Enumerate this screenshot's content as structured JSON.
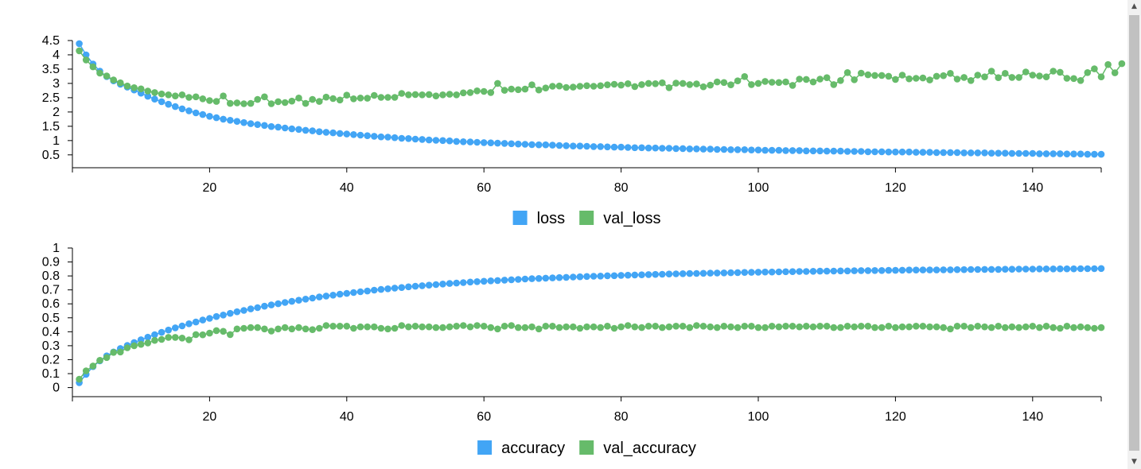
{
  "chart_data": [
    {
      "type": "line",
      "markers": true,
      "x": {
        "start": 1,
        "end": 150,
        "step": 1
      },
      "xlim": [
        0,
        150
      ],
      "ylim": [
        0.05,
        4.75
      ],
      "x_ticks": [
        20,
        40,
        60,
        80,
        100,
        120,
        140
      ],
      "x_tick_labels": [
        "20",
        "40",
        "60",
        "80",
        "100",
        "120",
        "140"
      ],
      "y_ticks": [
        0.5,
        1,
        1.5,
        2,
        2.5,
        3,
        3.5,
        4,
        4.5
      ],
      "y_tick_labels": [
        "0.5",
        "1",
        "1.5",
        "2",
        "2.5",
        "3",
        "3.5",
        "4",
        "4.5"
      ],
      "legend_position": "bottom-center",
      "series": [
        {
          "name": "loss",
          "color": "#42a5f5",
          "values": [
            4.39,
            4.0,
            3.68,
            3.43,
            3.24,
            3.09,
            2.97,
            2.87,
            2.77,
            2.66,
            2.55,
            2.45,
            2.36,
            2.27,
            2.19,
            2.11,
            2.04,
            1.97,
            1.91,
            1.85,
            1.8,
            1.75,
            1.71,
            1.67,
            1.63,
            1.59,
            1.56,
            1.53,
            1.49,
            1.47,
            1.44,
            1.41,
            1.39,
            1.36,
            1.34,
            1.31,
            1.29,
            1.27,
            1.25,
            1.23,
            1.21,
            1.19,
            1.17,
            1.15,
            1.13,
            1.12,
            1.1,
            1.08,
            1.07,
            1.05,
            1.04,
            1.02,
            1.01,
            1.0,
            0.99,
            0.97,
            0.96,
            0.95,
            0.94,
            0.93,
            0.92,
            0.91,
            0.9,
            0.89,
            0.88,
            0.87,
            0.86,
            0.85,
            0.85,
            0.84,
            0.83,
            0.82,
            0.81,
            0.81,
            0.8,
            0.79,
            0.79,
            0.78,
            0.77,
            0.77,
            0.76,
            0.75,
            0.75,
            0.74,
            0.74,
            0.73,
            0.73,
            0.72,
            0.72,
            0.71,
            0.71,
            0.7,
            0.7,
            0.69,
            0.69,
            0.68,
            0.68,
            0.68,
            0.67,
            0.67,
            0.66,
            0.66,
            0.66,
            0.65,
            0.65,
            0.65,
            0.64,
            0.64,
            0.64,
            0.63,
            0.63,
            0.63,
            0.62,
            0.62,
            0.62,
            0.61,
            0.61,
            0.61,
            0.6,
            0.6,
            0.6,
            0.6,
            0.59,
            0.59,
            0.59,
            0.58,
            0.58,
            0.58,
            0.58,
            0.57,
            0.57,
            0.57,
            0.57,
            0.56,
            0.56,
            0.56,
            0.55,
            0.55,
            0.55,
            0.55,
            0.54,
            0.54,
            0.54,
            0.54,
            0.53,
            0.53,
            0.53,
            0.52,
            0.52,
            0.52
          ]
        },
        {
          "name": "val_loss",
          "color": "#66bb6a",
          "values": [
            4.14,
            3.82,
            3.58,
            3.36,
            3.26,
            3.12,
            3.02,
            2.91,
            2.85,
            2.81,
            2.73,
            2.68,
            2.63,
            2.6,
            2.56,
            2.6,
            2.51,
            2.53,
            2.46,
            2.4,
            2.37,
            2.56,
            2.3,
            2.32,
            2.29,
            2.3,
            2.44,
            2.53,
            2.29,
            2.36,
            2.33,
            2.38,
            2.49,
            2.3,
            2.44,
            2.37,
            2.52,
            2.47,
            2.42,
            2.59,
            2.46,
            2.49,
            2.48,
            2.58,
            2.51,
            2.51,
            2.51,
            2.65,
            2.6,
            2.61,
            2.6,
            2.61,
            2.56,
            2.6,
            2.62,
            2.6,
            2.67,
            2.68,
            2.74,
            2.72,
            2.68,
            3.0,
            2.76,
            2.8,
            2.78,
            2.8,
            2.95,
            2.77,
            2.84,
            2.9,
            2.91,
            2.86,
            2.87,
            2.9,
            2.92,
            2.9,
            2.92,
            2.95,
            2.97,
            2.94,
            2.99,
            2.89,
            2.96,
            3.0,
            2.99,
            3.02,
            2.85,
            3.01,
            3.0,
            2.96,
            2.98,
            2.88,
            2.94,
            3.05,
            3.03,
            2.95,
            3.09,
            3.24,
            2.96,
            3.0,
            3.07,
            3.04,
            3.03,
            3.05,
            2.93,
            3.15,
            3.14,
            3.05,
            3.15,
            3.2,
            2.96,
            3.1,
            3.38,
            3.13,
            3.36,
            3.3,
            3.28,
            3.28,
            3.25,
            3.14,
            3.29,
            3.16,
            3.18,
            3.19,
            3.12,
            3.25,
            3.27,
            3.35,
            3.15,
            3.21,
            3.1,
            3.29,
            3.23,
            3.43,
            3.2,
            3.35,
            3.21,
            3.21,
            3.4,
            3.29,
            3.26,
            3.23,
            3.43,
            3.39,
            3.18,
            3.17,
            3.1,
            3.38,
            3.51,
            3.23,
            3.66,
            3.37,
            3.69
          ]
        }
      ]
    },
    {
      "type": "line",
      "markers": true,
      "x": {
        "start": 1,
        "end": 150,
        "step": 1
      },
      "xlim": [
        0,
        150
      ],
      "ylim": [
        -0.065,
        1.0
      ],
      "x_ticks": [
        20,
        40,
        60,
        80,
        100,
        120,
        140
      ],
      "x_tick_labels": [
        "20",
        "40",
        "60",
        "80",
        "100",
        "120",
        "140"
      ],
      "y_ticks": [
        0,
        0.1,
        0.2,
        0.3,
        0.4,
        0.5,
        0.6,
        0.7,
        0.8,
        0.9,
        1
      ],
      "y_tick_labels": [
        "0",
        "0.1",
        "0.2",
        "0.3",
        "0.4",
        "0.5",
        "0.6",
        "0.7",
        "0.8",
        "0.9",
        "1"
      ],
      "legend_position": "bottom-center",
      "series": [
        {
          "name": "accuracy",
          "color": "#42a5f5",
          "values": [
            0.035,
            0.095,
            0.15,
            0.192,
            0.227,
            0.255,
            0.28,
            0.302,
            0.323,
            0.343,
            0.361,
            0.379,
            0.396,
            0.412,
            0.428,
            0.442,
            0.457,
            0.47,
            0.484,
            0.496,
            0.509,
            0.52,
            0.532,
            0.543,
            0.553,
            0.564,
            0.573,
            0.583,
            0.592,
            0.601,
            0.61,
            0.618,
            0.626,
            0.634,
            0.641,
            0.649,
            0.656,
            0.662,
            0.669,
            0.675,
            0.681,
            0.687,
            0.692,
            0.698,
            0.703,
            0.708,
            0.713,
            0.717,
            0.722,
            0.726,
            0.73,
            0.734,
            0.738,
            0.742,
            0.746,
            0.749,
            0.752,
            0.756,
            0.759,
            0.762,
            0.765,
            0.767,
            0.77,
            0.773,
            0.775,
            0.778,
            0.78,
            0.782,
            0.784,
            0.786,
            0.788,
            0.79,
            0.792,
            0.794,
            0.796,
            0.798,
            0.799,
            0.801,
            0.802,
            0.804,
            0.805,
            0.807,
            0.808,
            0.81,
            0.811,
            0.812,
            0.814,
            0.815,
            0.816,
            0.817,
            0.818,
            0.819,
            0.82,
            0.821,
            0.822,
            0.823,
            0.824,
            0.825,
            0.826,
            0.827,
            0.828,
            0.828,
            0.829,
            0.83,
            0.831,
            0.832,
            0.832,
            0.833,
            0.834,
            0.834,
            0.835,
            0.836,
            0.836,
            0.837,
            0.838,
            0.838,
            0.839,
            0.839,
            0.84,
            0.84,
            0.841,
            0.842,
            0.842,
            0.843,
            0.843,
            0.843,
            0.844,
            0.844,
            0.845,
            0.845,
            0.846,
            0.846,
            0.847,
            0.847,
            0.847,
            0.848,
            0.848,
            0.849,
            0.849,
            0.849,
            0.85,
            0.85,
            0.85,
            0.851,
            0.851,
            0.851,
            0.852,
            0.852,
            0.852,
            0.853
          ]
        },
        {
          "name": "val_accuracy",
          "color": "#66bb6a",
          "values": [
            0.06,
            0.12,
            0.155,
            0.195,
            0.215,
            0.252,
            0.255,
            0.285,
            0.3,
            0.31,
            0.32,
            0.338,
            0.345,
            0.36,
            0.36,
            0.355,
            0.342,
            0.38,
            0.378,
            0.39,
            0.408,
            0.403,
            0.38,
            0.42,
            0.425,
            0.43,
            0.43,
            0.42,
            0.405,
            0.42,
            0.43,
            0.42,
            0.43,
            0.42,
            0.415,
            0.425,
            0.445,
            0.44,
            0.44,
            0.44,
            0.425,
            0.435,
            0.435,
            0.435,
            0.425,
            0.42,
            0.425,
            0.445,
            0.435,
            0.44,
            0.435,
            0.435,
            0.43,
            0.43,
            0.435,
            0.44,
            0.445,
            0.435,
            0.445,
            0.44,
            0.43,
            0.42,
            0.44,
            0.445,
            0.43,
            0.43,
            0.435,
            0.42,
            0.44,
            0.44,
            0.43,
            0.435,
            0.435,
            0.425,
            0.435,
            0.435,
            0.43,
            0.44,
            0.425,
            0.435,
            0.445,
            0.435,
            0.43,
            0.44,
            0.44,
            0.43,
            0.435,
            0.44,
            0.44,
            0.43,
            0.445,
            0.44,
            0.435,
            0.43,
            0.44,
            0.435,
            0.43,
            0.44,
            0.44,
            0.43,
            0.43,
            0.44,
            0.435,
            0.44,
            0.44,
            0.435,
            0.44,
            0.435,
            0.44,
            0.44,
            0.43,
            0.43,
            0.44,
            0.435,
            0.44,
            0.44,
            0.43,
            0.43,
            0.44,
            0.43,
            0.435,
            0.435,
            0.44,
            0.44,
            0.435,
            0.435,
            0.43,
            0.42,
            0.44,
            0.44,
            0.43,
            0.44,
            0.435,
            0.43,
            0.44,
            0.43,
            0.435,
            0.43,
            0.435,
            0.44,
            0.43,
            0.44,
            0.43,
            0.425,
            0.44,
            0.43,
            0.435,
            0.43,
            0.425,
            0.43
          ]
        }
      ]
    }
  ]
}
